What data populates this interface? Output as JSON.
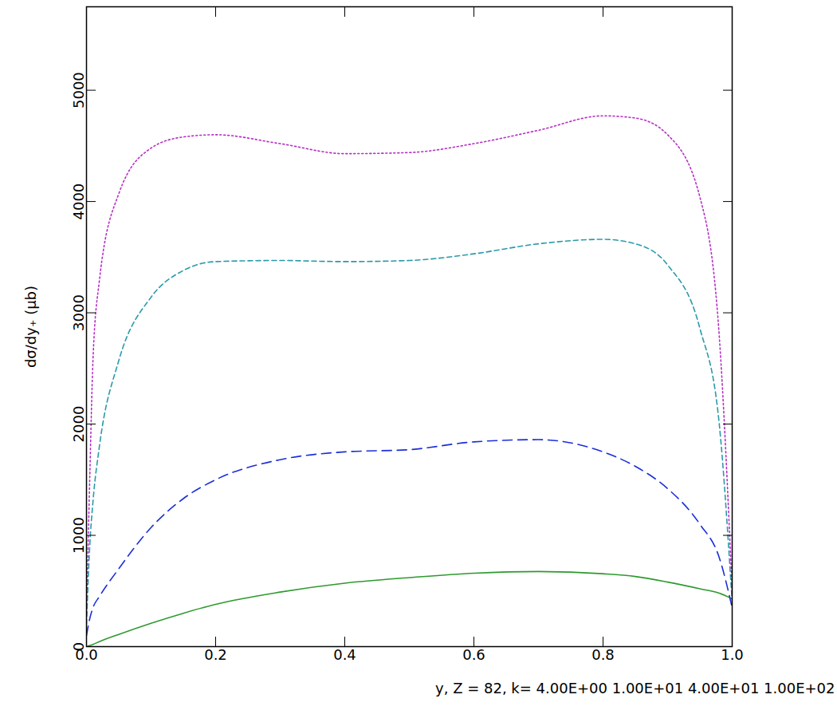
{
  "chart_data": {
    "type": "line",
    "x_label": "y, Z = 82, k= 4.00E+00 1.00E+01 4.00E+01 1.00E+02",
    "y_label": "dσ/dy₊ (μb)",
    "xlim": [
      0,
      1
    ],
    "ylim": [
      0,
      5750
    ],
    "xticks": [
      {
        "value": 0,
        "label": "0.0"
      },
      {
        "value": 0.2,
        "label": "0.2"
      },
      {
        "value": 0.4,
        "label": "0.4"
      },
      {
        "value": 0.6,
        "label": "0.6"
      },
      {
        "value": 0.8,
        "label": "0.8"
      },
      {
        "value": 1,
        "label": "1.0"
      }
    ],
    "yticks": [
      0,
      1000,
      2000,
      3000,
      4000,
      5000
    ],
    "x": [
      0,
      0.005,
      0.01,
      0.02,
      0.05,
      0.1,
      0.15,
      0.2,
      0.3,
      0.4,
      0.5,
      0.6,
      0.7,
      0.8,
      0.85,
      0.9,
      0.95,
      0.98,
      1.0
    ],
    "series": [
      {
        "color": "#2e9a2e",
        "line_style": "solid",
        "values": [
          0,
          10,
          20,
          45,
          110,
          210,
          300,
          380,
          490,
          570,
          620,
          660,
          675,
          655,
          630,
          580,
          520,
          480,
          430
        ]
      },
      {
        "color": "#1c2fd8",
        "line_style": "longdash",
        "values": [
          100,
          250,
          350,
          450,
          700,
          1070,
          1330,
          1500,
          1680,
          1750,
          1770,
          1840,
          1860,
          1750,
          1620,
          1420,
          1100,
          800,
          350
        ]
      },
      {
        "color": "#2a9aaa",
        "line_style": "dashed",
        "values": [
          200,
          900,
          1300,
          1800,
          2570,
          3140,
          3380,
          3460,
          3470,
          3460,
          3470,
          3530,
          3620,
          3660,
          3620,
          3430,
          2860,
          2000,
          400
        ]
      },
      {
        "color": "#b52fc4",
        "line_style": "dotted",
        "values": [
          300,
          1500,
          2570,
          3290,
          4070,
          4480,
          4580,
          4600,
          4520,
          4430,
          4440,
          4520,
          4640,
          4770,
          4750,
          4600,
          4040,
          2790,
          500
        ]
      }
    ]
  }
}
